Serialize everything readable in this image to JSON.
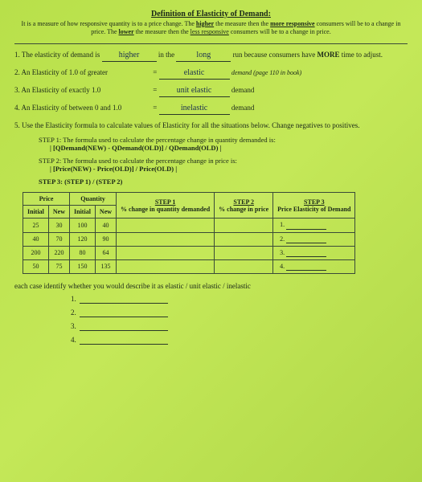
{
  "header": {
    "title": "Definition of Elasticity of Demand:",
    "subtitle_a": "It is a measure of how responsive quantity is to a price change. The ",
    "subtitle_b": "higher",
    "subtitle_c": " the measure then the ",
    "subtitle_d": "more responsive",
    "subtitle_e": " consumers will be to a change in price. The ",
    "subtitle_f": "lower",
    "subtitle_g": " the measure then the ",
    "subtitle_h": "less responsive",
    "subtitle_i": " consumers will be to a change in price."
  },
  "q1": {
    "pre": "1. The elasticity of demand is ",
    "ans1": "higher",
    "mid": " in the ",
    "ans2": "long",
    "post": " run because consumers have ",
    "bold": "MORE",
    "tail": " time to adjust."
  },
  "q2": {
    "label": "2. An Elasticity of 1.0 of greater",
    "eq": "=",
    "ans": "elastic",
    "post": "demand (page 110 in book)"
  },
  "q3": {
    "label": "3. An Elasticity of exactly 1.0",
    "eq": "=",
    "ans": "unit elastic",
    "post": "demand"
  },
  "q4": {
    "label": "4. An Elasticity of between 0 and 1.0",
    "eq": "=",
    "ans": "inelastic",
    "post": "demand"
  },
  "q5": {
    "label": "5. Use the Elasticity formula to calculate values of Elasticity for all the situations below. Change negatives to positives.",
    "step1a": "STEP 1: The formula used to calculate the percentage change in quantity demanded is:",
    "step1b": "| [QDemand(NEW) - QDemand(OLD)] / QDemand(OLD) |",
    "step2a": "STEP 2: The formula used to calculate the percentage change in price is:",
    "step2b": "| [Price(NEW) - Price(OLD)] / Price(OLD) |",
    "step3": "STEP 3: (STEP 1) / (STEP 2)"
  },
  "table": {
    "h_price": "Price",
    "h_qty": "Quantity",
    "h_s1a": "STEP 1",
    "h_s1b": "% change in quantity demanded",
    "h_s2a": "STEP 2",
    "h_s2b": "% change in price",
    "h_s3a": "STEP 3",
    "h_s3b": "Price Elasticity of Demand",
    "h_init": "Initial",
    "h_new": "New",
    "rows": [
      {
        "pi": "25",
        "pn": "30",
        "qi": "100",
        "qn": "40",
        "n": "1."
      },
      {
        "pi": "40",
        "pn": "70",
        "qi": "120",
        "qn": "90",
        "n": "2."
      },
      {
        "pi": "200",
        "pn": "220",
        "qi": "80",
        "qn": "64",
        "n": "3."
      },
      {
        "pi": "50",
        "pn": "75",
        "qi": "150",
        "qn": "135",
        "n": "4."
      }
    ]
  },
  "bottom": {
    "q": "each case identify whether you would describe it as elastic / unit elastic / inelastic",
    "n1": "1.",
    "n2": "2.",
    "n3": "3.",
    "n4": "4."
  }
}
